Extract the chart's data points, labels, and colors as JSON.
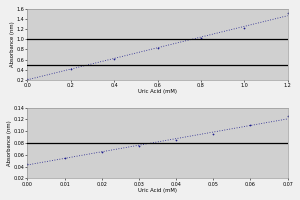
{
  "top": {
    "x": [
      0,
      0.2,
      0.4,
      0.6,
      0.8,
      1.0,
      1.2
    ],
    "y": [
      0.22,
      0.42,
      0.62,
      0.82,
      1.02,
      1.22,
      1.52
    ],
    "xlim": [
      0,
      1.2
    ],
    "ylim": [
      0.2,
      1.6
    ],
    "xticks": [
      0,
      0.2,
      0.4,
      0.6,
      0.8,
      1.0,
      1.2
    ],
    "yticks": [
      0.2,
      0.4,
      0.6,
      0.8,
      1.0,
      1.2,
      1.4,
      1.6
    ],
    "xlabel": "Uric Acid (mM)",
    "ylabel": "Absorbance (nm)",
    "hlines": [
      0.5,
      1.0
    ],
    "bg_color": "#d0d0d0"
  },
  "bot": {
    "x": [
      0,
      0.01,
      0.02,
      0.03,
      0.04,
      0.05,
      0.06,
      0.07
    ],
    "y": [
      0.045,
      0.055,
      0.065,
      0.075,
      0.085,
      0.095,
      0.11,
      0.125
    ],
    "xlim": [
      0,
      0.07
    ],
    "ylim": [
      0.02,
      0.14
    ],
    "xticks": [
      0,
      0.01,
      0.02,
      0.03,
      0.04,
      0.05,
      0.06,
      0.07
    ],
    "yticks": [
      0.02,
      0.04,
      0.06,
      0.08,
      0.1,
      0.12,
      0.14
    ],
    "xlabel": "Uric Acid (mM)",
    "ylabel": "Absorbance (nm)",
    "hlines": [
      0.08
    ],
    "bg_color": "#d0d0d0"
  },
  "line_color": "#1a1a8c",
  "hline_color": "#000000",
  "tick_fontsize": 3.5,
  "label_fontsize": 3.8,
  "outer_bg": "#f0f0f0"
}
